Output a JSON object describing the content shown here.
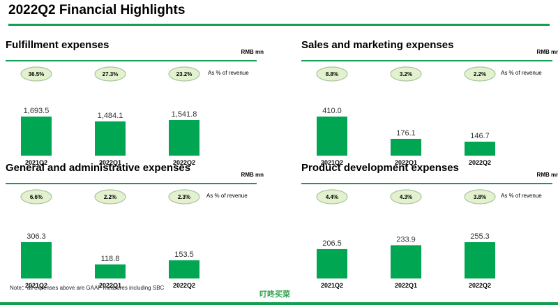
{
  "page": {
    "title": "2022Q2 Financial Highlights",
    "footnote": "Note：all expenses above are GAAP measures including SBC",
    "logo_text": "叮咚买菜"
  },
  "colors": {
    "bar": "#00a651",
    "rule": "#10a050",
    "ellipse_fill": "#e3f1cf",
    "ellipse_stroke": "#a8c4a0"
  },
  "chart_data": [
    {
      "type": "bar",
      "title": "Fulfillment expenses",
      "unit": "RMB mn",
      "categories": [
        "2021Q2",
        "2022Q1",
        "2022Q2"
      ],
      "values": [
        1693.5,
        1484.1,
        1541.8
      ],
      "value_labels": [
        "1,693.5",
        "1,484.1",
        "1,541.8"
      ],
      "pct_of_revenue": [
        "36.5%",
        "27.3%",
        "23.2%"
      ],
      "pct_note": "As % of revenue"
    },
    {
      "type": "bar",
      "title": "Sales and marketing expenses",
      "unit": "RMB mn",
      "categories": [
        "2021Q2",
        "2022Q1",
        "2022Q2"
      ],
      "values": [
        410.0,
        176.1,
        146.7
      ],
      "value_labels": [
        "410.0",
        "176.1",
        "146.7"
      ],
      "pct_of_revenue": [
        "8.8%",
        "3.2%",
        "2.2%"
      ],
      "pct_note": "As % of revenue"
    },
    {
      "type": "bar",
      "title": "General and administrative expenses",
      "unit": "RMB mn",
      "categories": [
        "2021Q2",
        "2022Q1",
        "2022Q2"
      ],
      "values": [
        306.3,
        118.8,
        153.5
      ],
      "value_labels": [
        "306.3",
        "118.8",
        "153.5"
      ],
      "pct_of_revenue": [
        "6.6%",
        "2.2%",
        "2.3%"
      ],
      "pct_note": "As % of revenue"
    },
    {
      "type": "bar",
      "title": "Product development expenses",
      "unit": "RMB mn",
      "categories": [
        "2021Q2",
        "2022Q1",
        "2022Q2"
      ],
      "values": [
        206.5,
        233.9,
        255.3
      ],
      "value_labels": [
        "206.5",
        "233.9",
        "255.3"
      ],
      "pct_of_revenue": [
        "4.4%",
        "4.3%",
        "3.8%"
      ],
      "pct_note": "As % of revenue"
    }
  ]
}
